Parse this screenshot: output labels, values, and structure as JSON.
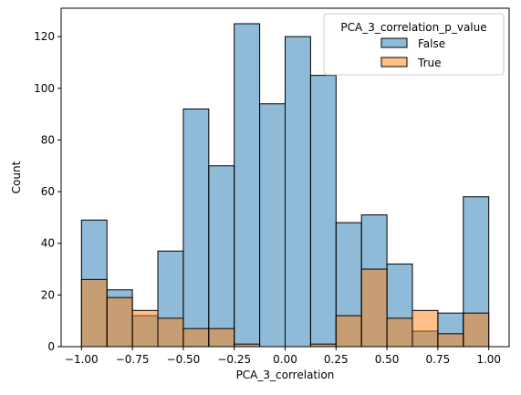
{
  "chart_data": {
    "type": "bar",
    "subtype": "histogram-overlay",
    "title": "",
    "xlabel": "PCA_3_correlation",
    "ylabel": "Count",
    "xlim": [
      -1.1,
      1.1
    ],
    "ylim": [
      0,
      131
    ],
    "grid": false,
    "legend": {
      "title": "PCA_3_correlation_p_value",
      "placement": "top-right"
    },
    "x_ticks": [
      -1.0,
      -0.75,
      -0.5,
      -0.25,
      0.0,
      0.25,
      0.5,
      0.75,
      1.0
    ],
    "x_tick_labels": [
      "−1.00",
      "−0.75",
      "−0.50",
      "−0.25",
      "0.00",
      "0.25",
      "0.50",
      "0.75",
      "1.00"
    ],
    "y_ticks": [
      0,
      20,
      40,
      60,
      80,
      100,
      120
    ],
    "y_tick_labels": [
      "0",
      "20",
      "40",
      "60",
      "80",
      "100",
      "120"
    ],
    "bin_edges": [
      -1.0,
      -0.875,
      -0.75,
      -0.625,
      -0.5,
      -0.375,
      -0.25,
      -0.125,
      0.0,
      0.125,
      0.25,
      0.375,
      0.5,
      0.625,
      0.75,
      0.875,
      1.0
    ],
    "series": [
      {
        "name": "False",
        "color": "#1f77b4",
        "values": [
          49,
          22,
          12,
          37,
          92,
          70,
          125,
          94,
          120,
          105,
          48,
          51,
          32,
          6,
          13,
          58
        ]
      },
      {
        "name": "True",
        "color": "#ff7f0e",
        "values": [
          26,
          19,
          14,
          11,
          7,
          7,
          1,
          0,
          0,
          1,
          12,
          30,
          11,
          14,
          5,
          13
        ]
      }
    ]
  }
}
